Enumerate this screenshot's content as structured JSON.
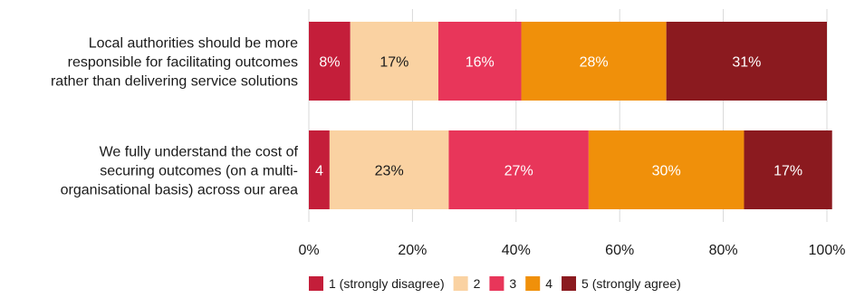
{
  "chart_data": {
    "type": "bar",
    "orientation": "horizontal",
    "stacked": true,
    "categories": [
      [
        "Local authorities should be more",
        "responsible for facilitating outcomes",
        "rather than delivering service solutions"
      ],
      [
        "We fully understand the cost of",
        "securing outcomes (on a multi-",
        "organisational basis) across our area"
      ]
    ],
    "series": [
      {
        "name": "1 (strongly disagree)",
        "color": "#c41e3a",
        "values": [
          8,
          4
        ],
        "labels": [
          "8%",
          "4"
        ],
        "label_color": "#ffffff"
      },
      {
        "name": "2",
        "color": "#fad2a2",
        "values": [
          17,
          23
        ],
        "labels": [
          "17%",
          "23%"
        ],
        "label_color": "#1a1a1a"
      },
      {
        "name": "3",
        "color": "#e8365a",
        "values": [
          16,
          27
        ],
        "labels": [
          "16%",
          "27%"
        ],
        "label_color": "#ffffff"
      },
      {
        "name": "4",
        "color": "#f0900a",
        "values": [
          28,
          30
        ],
        "labels": [
          "28%",
          "30%"
        ],
        "label_color": "#ffffff"
      },
      {
        "name": "5 (strongly agree)",
        "color": "#8b1a1f",
        "values": [
          31,
          17
        ],
        "labels": [
          "31%",
          "17%"
        ],
        "label_color": "#ffffff"
      }
    ],
    "xlim": [
      0,
      100
    ],
    "x_ticks": [
      0,
      20,
      40,
      60,
      80,
      100
    ],
    "x_tick_labels": [
      "0%",
      "20%",
      "40%",
      "60%",
      "80%",
      "100%"
    ],
    "grid": true,
    "legend_position": "bottom"
  }
}
